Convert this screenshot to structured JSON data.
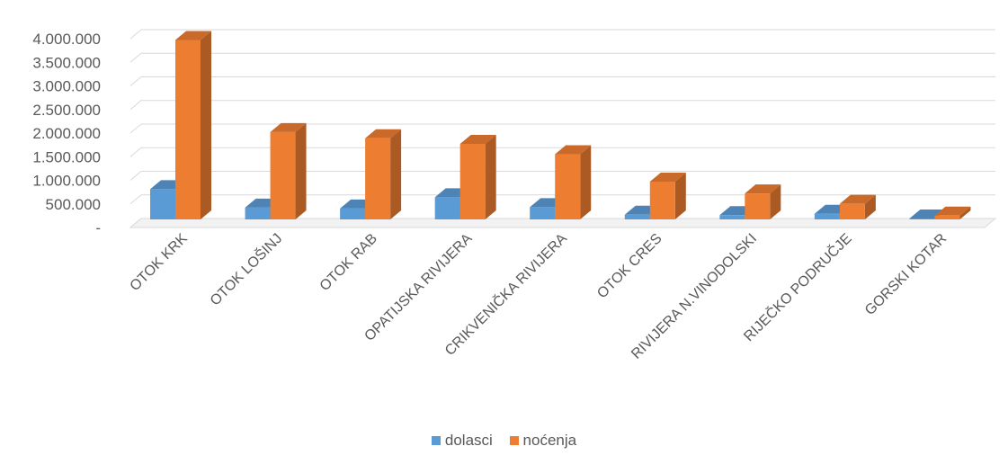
{
  "chart_data": {
    "type": "bar",
    "style": "3d-clustered-column",
    "categories": [
      "OTOK KRK",
      "OTOK LOŠINJ",
      "OTOK RAB",
      "OPATIJSKA RIVIJERA",
      "CRIKVENIČKA RIVIJERA",
      "OTOK CRES",
      "RIVIJERA N.VINODOLSKI",
      "RIJEČKO PODRUČJE",
      "GORSKI KOTAR"
    ],
    "series": [
      {
        "name": "dolasci",
        "color": "#5B9BD5",
        "values": [
          640000,
          250000,
          230000,
          470000,
          260000,
          100000,
          90000,
          120000,
          20000
        ]
      },
      {
        "name": "noćenja",
        "color": "#ED7D31",
        "values": [
          3800000,
          1850000,
          1720000,
          1600000,
          1380000,
          800000,
          550000,
          330000,
          80000
        ]
      }
    ],
    "ylim": [
      0,
      4000000
    ],
    "yticks": [
      0,
      500000,
      1000000,
      1500000,
      2000000,
      2500000,
      3000000,
      3500000,
      4000000
    ],
    "ytick_labels": [
      "-",
      "500.000",
      "1.000.000",
      "1.500.000",
      "2.000.000",
      "2.500.000",
      "3.000.000",
      "3.500.000",
      "4.000.000"
    ],
    "grid": true,
    "legend_position": "bottom",
    "title": "",
    "xlabel": "",
    "ylabel": ""
  }
}
